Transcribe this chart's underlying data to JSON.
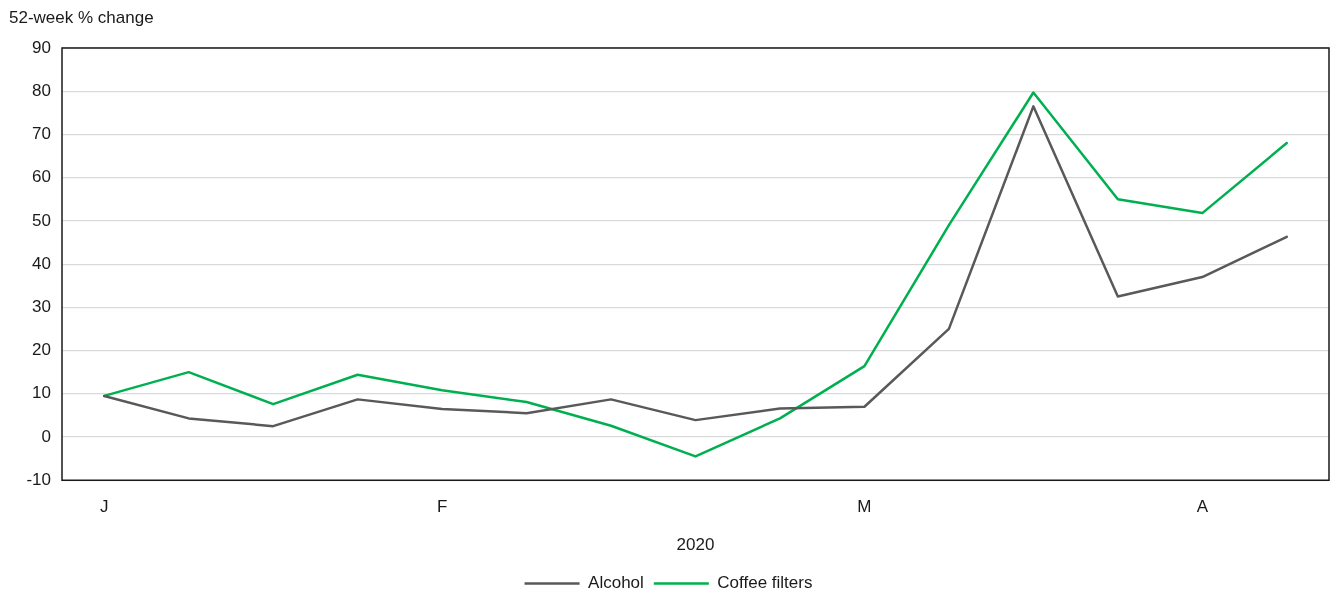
{
  "chart_data": {
    "type": "line",
    "ylabel": "52-week % change",
    "xlabel": "2020",
    "categories": [
      "J",
      null,
      null,
      null,
      "F",
      null,
      null,
      null,
      null,
      "M",
      null,
      null,
      null,
      "A",
      null
    ],
    "series": [
      {
        "name": "Alcohol",
        "color": "#595959",
        "values": [
          9.5,
          4.3,
          2.5,
          8.7,
          6.5,
          5.5,
          8.7,
          3.9,
          6.6,
          7.0,
          25,
          76.5,
          32.5,
          37,
          46.3
        ]
      },
      {
        "name": "Coffee filters",
        "color": "#00b050",
        "values": [
          9.5,
          15,
          7.6,
          14.4,
          10.8,
          8.1,
          2.6,
          -4.5,
          4.3,
          16.4,
          49,
          79.7,
          55,
          51.8,
          68
        ]
      }
    ],
    "ylim": [
      -10,
      90
    ],
    "yticks": [
      -10,
      0,
      10,
      20,
      30,
      40,
      50,
      60,
      70,
      80,
      90
    ],
    "grid": "y",
    "legend": "bottom"
  }
}
